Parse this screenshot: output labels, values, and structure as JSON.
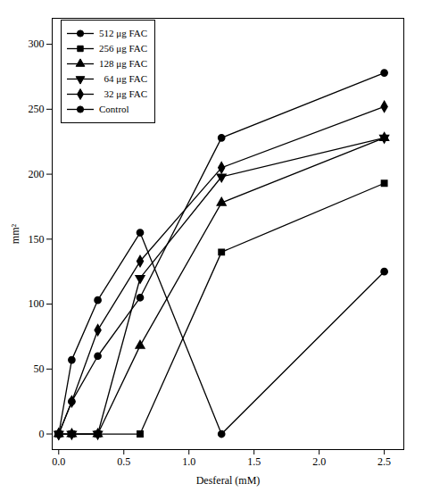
{
  "chart_data": {
    "type": "line",
    "xlabel": "Desferal (mM)",
    "ylabel": "mm²",
    "x": [
      0.0,
      0.1,
      0.3,
      0.625,
      1.25,
      2.5
    ],
    "series": [
      {
        "name": "512 μg FAC",
        "marker": "circle",
        "values": [
          0,
          25,
          60,
          105,
          228,
          278
        ]
      },
      {
        "name": "256 μg FAC",
        "marker": "square",
        "values": [
          0,
          0,
          0,
          0,
          140,
          193
        ]
      },
      {
        "name": "128 μg FAC",
        "marker": "triangle-up",
        "values": [
          0,
          0,
          0,
          68,
          178,
          228
        ]
      },
      {
        "name": "  64 μg FAC",
        "marker": "triangle-down",
        "values": [
          0,
          0,
          0,
          120,
          198,
          228
        ]
      },
      {
        "name": "  32 μg FAC",
        "marker": "diamond",
        "values": [
          0,
          25,
          80,
          133,
          205,
          252
        ]
      },
      {
        "name": "Control",
        "marker": "circle",
        "values": [
          0,
          57,
          103,
          155,
          0,
          125
        ]
      }
    ],
    "xlim": [
      -0.05,
      2.65
    ],
    "ylim": [
      -12,
      320
    ],
    "xticks": [
      {
        "value": 0.0,
        "label": "0.0"
      },
      {
        "value": 0.5,
        "label": "0.5"
      },
      {
        "value": 1.0,
        "label": "1.0"
      },
      {
        "value": 1.5,
        "label": "1.5"
      },
      {
        "value": 2.0,
        "label": "2.0"
      },
      {
        "value": 2.5,
        "label": "2.5"
      }
    ],
    "yticks": [
      0,
      50,
      100,
      150,
      200,
      250,
      300
    ],
    "color": "#000000",
    "grid": false,
    "legend": "upper left"
  }
}
